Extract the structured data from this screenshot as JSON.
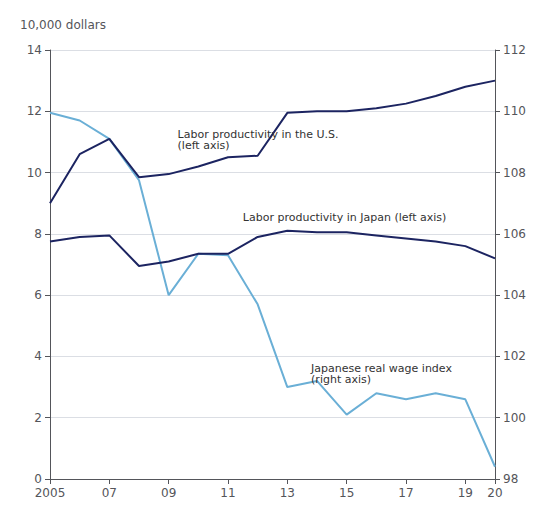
{
  "chart_data": {
    "type": "line",
    "x": [
      2005,
      2006,
      2007,
      2008,
      2009,
      2010,
      2011,
      2012,
      2013,
      2014,
      2015,
      2016,
      2017,
      2018,
      2019,
      2020
    ],
    "xlim": [
      2005,
      2020
    ],
    "xticks": [
      2005,
      {
        "value": 2007,
        "label": "07"
      },
      {
        "value": 2009,
        "label": "09"
      },
      {
        "value": 2011,
        "label": "11"
      },
      {
        "value": 2013,
        "label": "13"
      },
      {
        "value": 2015,
        "label": "15"
      },
      {
        "value": 2017,
        "label": "17"
      },
      {
        "value": 2019,
        "label": "19"
      },
      {
        "value": 2020,
        "label": "20"
      }
    ],
    "ylim": [
      0,
      14
    ],
    "yticks": [
      0,
      2,
      4,
      6,
      8,
      10,
      12,
      14
    ],
    "y2lim": [
      98,
      112
    ],
    "y2ticks": [
      98,
      100,
      102,
      104,
      106,
      108,
      110,
      112
    ],
    "ylabel": "10,000 dollars",
    "grid": true,
    "series": [
      {
        "color": "#6aafd6",
        "axis": "y2",
        "values": [
          109.95,
          109.7,
          109.1,
          107.75,
          104.0,
          105.35,
          105.3,
          103.7,
          101.0,
          101.2,
          100.1,
          100.8,
          100.6,
          100.8,
          100.6,
          98.4
        ]
      },
      {
        "color": "#1c2461",
        "values": [
          9.0,
          10.6,
          11.1,
          9.85,
          9.95,
          10.2,
          10.5,
          10.55,
          11.95,
          12.0,
          12.0,
          12.1,
          12.25,
          12.5,
          12.8,
          13.0
        ]
      },
      {
        "color": "#1c2461",
        "values": [
          7.75,
          7.9,
          7.95,
          6.95,
          7.1,
          7.35,
          7.35,
          7.9,
          8.1,
          8.05,
          8.05,
          7.95,
          7.85,
          7.75,
          7.6,
          7.2
        ]
      }
    ],
    "annotations": [
      {
        "text": "Labor productivity in the U.S.\n(left axis)",
        "x": 2009.3,
        "y": 10.7,
        "axis": "y"
      },
      {
        "text": "Labor productivity in Japan (left axis)",
        "x": 2011.5,
        "y": 8.35,
        "axis": "y"
      },
      {
        "text": "Japanese real wage index\n(right axis)",
        "x": 2013.8,
        "y": 101.8,
        "axis": "y2"
      }
    ]
  }
}
